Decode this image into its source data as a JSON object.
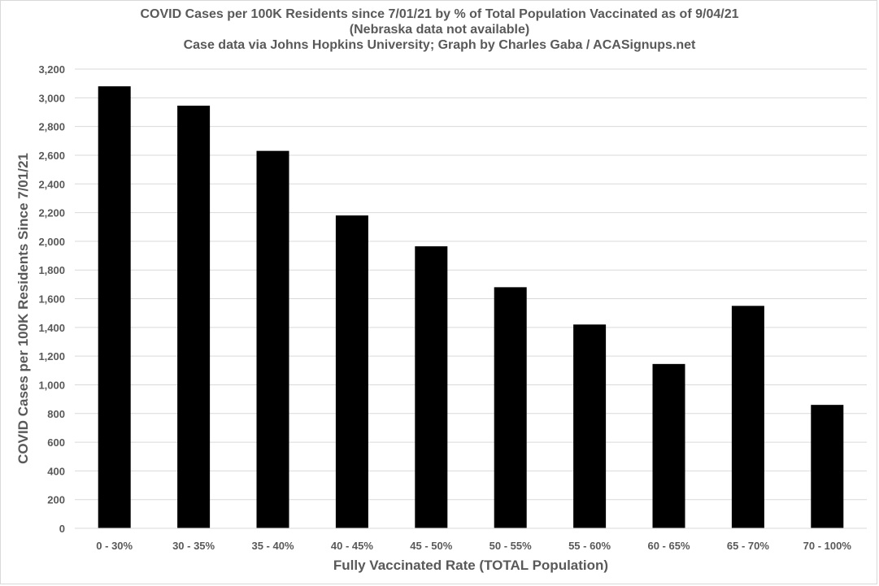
{
  "chart_data": {
    "type": "bar",
    "title": "COVID Cases per 100K Residents since 7/01/21 by % of Total Population Vaccinated as of 9/04/21",
    "subtitle_1": "(Nebraska data not available)",
    "subtitle_2": "Case data via Johns Hopkins University; Graph by Charles Gaba / ACASignups.net",
    "xlabel": "Fully Vaccinated Rate (TOTAL Population)",
    "ylabel": "COVID Cases per 100K Residents Since 7/01/21",
    "categories": [
      "0 - 30%",
      "30 - 35%",
      "35 - 40%",
      "40 - 45%",
      "45 - 50%",
      "50 - 55%",
      "55 - 60%",
      "60 - 65%",
      "65 - 70%",
      "70 - 100%"
    ],
    "values": [
      3080,
      2945,
      2630,
      2180,
      1965,
      1680,
      1420,
      1145,
      1550,
      860
    ],
    "ylim": [
      0,
      3200
    ],
    "yticks": [
      0,
      200,
      400,
      600,
      800,
      1000,
      1200,
      1400,
      1600,
      1800,
      2000,
      2200,
      2400,
      2600,
      2800,
      3000,
      3200
    ],
    "ytick_labels": [
      "0",
      "200",
      "400",
      "600",
      "800",
      "1,000",
      "1,200",
      "1,400",
      "1,600",
      "1,800",
      "2,000",
      "2,200",
      "2,400",
      "2,600",
      "2,800",
      "3,000",
      "3,200"
    ],
    "grid": true,
    "bar_color": "#000000",
    "grid_color": "#d9d9d9",
    "text_color": "#595959"
  }
}
